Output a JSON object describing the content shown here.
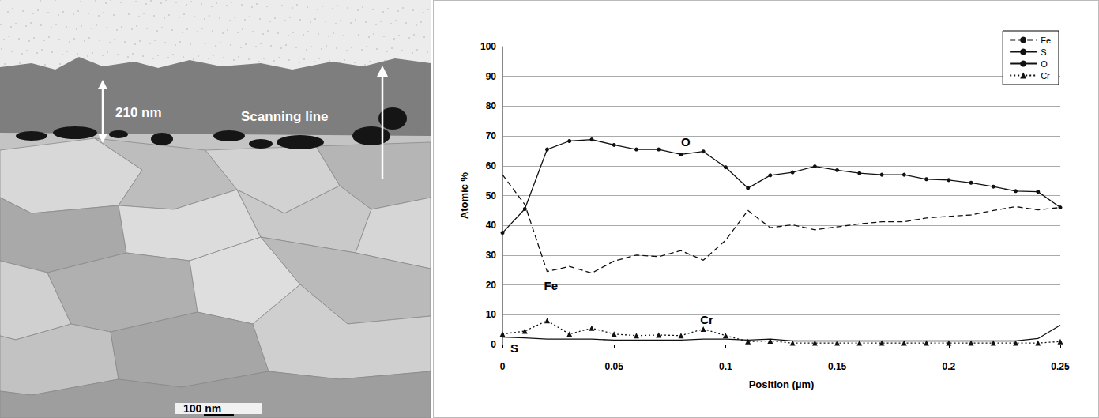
{
  "micrograph": {
    "thickness_label": "210 nm",
    "scan_label": "Scanning line",
    "scale_bar": "100 nm"
  },
  "chart_data": {
    "type": "line",
    "x": [
      0,
      0.01,
      0.02,
      0.03,
      0.04,
      0.05,
      0.06,
      0.07,
      0.08,
      0.09,
      0.1,
      0.11,
      0.12,
      0.13,
      0.14,
      0.15,
      0.16,
      0.17,
      0.18,
      0.19,
      0.2,
      0.21,
      0.22,
      0.23,
      0.24,
      0.25
    ],
    "series": [
      {
        "name": "Fe",
        "color": "#111111",
        "line_style": "dashed",
        "marker": "none",
        "values": [
          57,
          47,
          24.5,
          26.2,
          24,
          28,
          30,
          29.5,
          31.5,
          28.3,
          35,
          45,
          39.2,
          40.2,
          38.5,
          39.5,
          40.5,
          41.2,
          41.2,
          42.5,
          43,
          43.5,
          45,
          46.3,
          45.2,
          46
        ]
      },
      {
        "name": "S",
        "color": "#111111",
        "line_style": "solid",
        "marker": "none",
        "values": [
          2.5,
          2.2,
          1.8,
          1.8,
          1.8,
          1.5,
          1.5,
          1.5,
          1.5,
          1.8,
          1.8,
          1.5,
          1.8,
          1.2,
          1.2,
          1.2,
          1.2,
          1.2,
          1.2,
          1.2,
          1.2,
          1.2,
          1.2,
          1.2,
          2,
          6.5
        ]
      },
      {
        "name": "O",
        "color": "#111111",
        "line_style": "solid",
        "marker": "circle",
        "values": [
          37.5,
          45.5,
          65.5,
          68.3,
          68.8,
          67,
          65.5,
          65.5,
          63.8,
          64.8,
          59.5,
          52.5,
          56.8,
          57.8,
          59.8,
          58.5,
          57.5,
          57,
          57,
          55.5,
          55.2,
          54.3,
          53,
          51.5,
          51.3,
          46
        ]
      },
      {
        "name": "Cr",
        "color": "#111111",
        "line_style": "dotted",
        "marker": "triangle",
        "values": [
          3.5,
          4.5,
          8,
          3.5,
          5.5,
          3.5,
          3,
          3.2,
          3,
          5.2,
          3,
          1,
          1.2,
          0.5,
          0.5,
          0.5,
          0.5,
          0.5,
          0.5,
          0.5,
          0.5,
          0.5,
          0.5,
          0.5,
          0.5,
          1
        ]
      }
    ],
    "xlim": [
      0,
      0.25
    ],
    "xticks": [
      0,
      0.05,
      0.1,
      0.15,
      0.2,
      0.25
    ],
    "ylim": [
      0,
      100
    ],
    "yticks": [
      0,
      10,
      20,
      30,
      40,
      50,
      60,
      70,
      80,
      90,
      100
    ],
    "x_label": "Position (µm)",
    "y_label": "Atomic %",
    "grid": true,
    "legend": "upper right",
    "annotations": [
      {
        "text": "O",
        "series": "O"
      },
      {
        "text": "Fe",
        "series": "Fe"
      },
      {
        "text": "Cr",
        "series": "Cr"
      },
      {
        "text": "S",
        "series": "S"
      }
    ]
  }
}
